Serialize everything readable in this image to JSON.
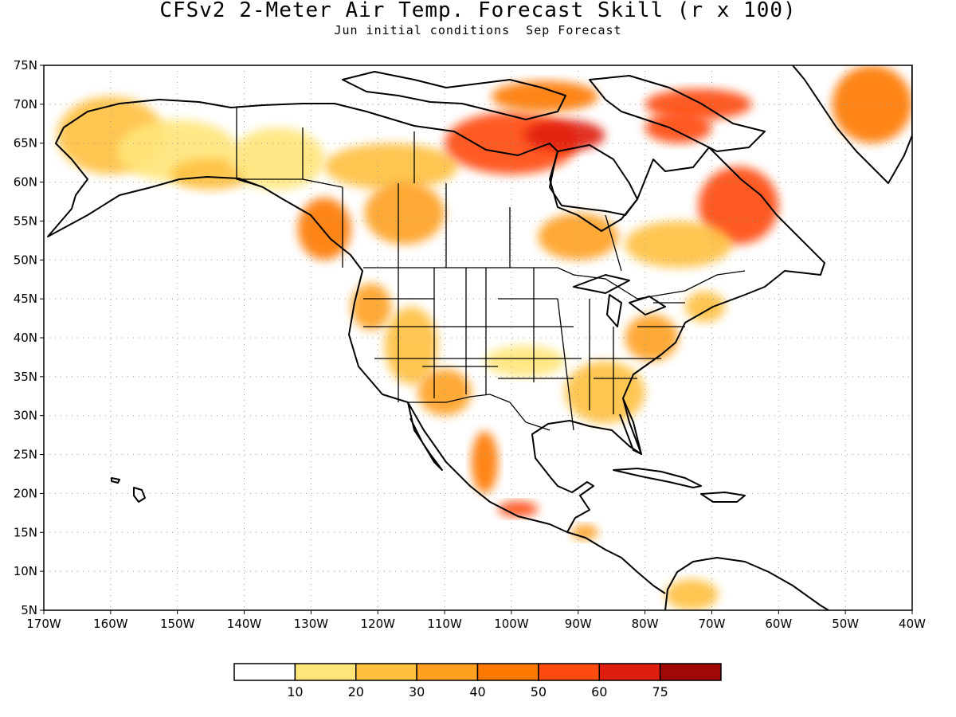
{
  "title": "CFSv2 2-Meter Air Temp. Forecast Skill (r x 100)",
  "subtitle": "Jun initial conditions  Sep Forecast",
  "map": {
    "lon_range": [
      -170,
      -40
    ],
    "lat_range": [
      5,
      75
    ],
    "x_ticks": [
      -170,
      -160,
      -150,
      -140,
      -130,
      -120,
      -110,
      -100,
      -90,
      -80,
      -70,
      -60,
      -50,
      -40
    ],
    "y_ticks": [
      5,
      10,
      15,
      20,
      25,
      30,
      35,
      40,
      45,
      50,
      55,
      60,
      65,
      70,
      75
    ],
    "x_tick_labels": [
      "170W",
      "160W",
      "150W",
      "140W",
      "130W",
      "120W",
      "110W",
      "100W",
      "90W",
      "80W",
      "70W",
      "60W",
      "50W",
      "40W"
    ],
    "y_tick_labels": [
      "5N",
      "10N",
      "15N",
      "20N",
      "25N",
      "30N",
      "35N",
      "40N",
      "45N",
      "50N",
      "55N",
      "60N",
      "65N",
      "70N",
      "75N"
    ],
    "grid": "dotted"
  },
  "colorbar": {
    "colors": [
      "#ffffff",
      "#ffe57a",
      "#ffc040",
      "#ffa020",
      "#ff7800",
      "#ff4a10",
      "#e01e10",
      "#a00808"
    ],
    "labels": [
      "10",
      "20",
      "30",
      "40",
      "50",
      "60",
      "75"
    ]
  },
  "skill_regions": [
    {
      "name": "alaska-west",
      "lon": -160,
      "lat": 66,
      "rx": 8,
      "ry": 5,
      "level": 2
    },
    {
      "name": "alaska-central",
      "lon": -150,
      "lat": 64,
      "rx": 9,
      "ry": 4,
      "level": 1
    },
    {
      "name": "alaska-south",
      "lon": -145,
      "lat": 61,
      "rx": 6,
      "ry": 2,
      "level": 2
    },
    {
      "name": "yukon",
      "lon": -135,
      "lat": 63,
      "rx": 7,
      "ry": 4,
      "level": 1
    },
    {
      "name": "nw-territories",
      "lon": -118,
      "lat": 62,
      "rx": 10,
      "ry": 3,
      "level": 2
    },
    {
      "name": "bc-coast",
      "lon": -128,
      "lat": 54,
      "rx": 4,
      "ry": 4,
      "level": 4
    },
    {
      "name": "alberta",
      "lon": -116,
      "lat": 56,
      "rx": 6,
      "ry": 4,
      "level": 3
    },
    {
      "name": "hudson-west",
      "lon": -100,
      "lat": 65,
      "rx": 10,
      "ry": 4,
      "level": 5
    },
    {
      "name": "nunavut-core",
      "lon": -92,
      "lat": 66,
      "rx": 6,
      "ry": 2,
      "level": 6
    },
    {
      "name": "arctic-islands",
      "lon": -95,
      "lat": 71,
      "rx": 8,
      "ry": 2,
      "level": 4
    },
    {
      "name": "ellesmere",
      "lon": -72,
      "lat": 70,
      "rx": 8,
      "ry": 2,
      "level": 5
    },
    {
      "name": "baffin",
      "lon": -75,
      "lat": 67,
      "rx": 5,
      "ry": 2,
      "level": 5
    },
    {
      "name": "labrador",
      "lon": -66,
      "lat": 57,
      "rx": 6,
      "ry": 5,
      "level": 5
    },
    {
      "name": "quebec-south",
      "lon": -75,
      "lat": 52,
      "rx": 8,
      "ry": 3,
      "level": 2
    },
    {
      "name": "ontario",
      "lon": -90,
      "lat": 53,
      "rx": 6,
      "ry": 3,
      "level": 3
    },
    {
      "name": "greenland",
      "lon": -46,
      "lat": 70,
      "rx": 6,
      "ry": 5,
      "level": 4
    },
    {
      "name": "pacific-nw",
      "lon": -121,
      "lat": 44,
      "rx": 3,
      "ry": 3,
      "level": 3
    },
    {
      "name": "great-basin",
      "lon": -115,
      "lat": 39,
      "rx": 4,
      "ry": 5,
      "level": 2
    },
    {
      "name": "southwest",
      "lon": -110,
      "lat": 33,
      "rx": 4,
      "ry": 3,
      "level": 3
    },
    {
      "name": "central-plains",
      "lon": -98,
      "lat": 37,
      "rx": 6,
      "ry": 2,
      "level": 1
    },
    {
      "name": "southeast",
      "lon": -86,
      "lat": 33,
      "rx": 6,
      "ry": 4,
      "level": 2
    },
    {
      "name": "mid-atlantic",
      "lon": -79,
      "lat": 40,
      "rx": 4,
      "ry": 3,
      "level": 3
    },
    {
      "name": "new-england",
      "lon": -71,
      "lat": 44,
      "rx": 3,
      "ry": 2,
      "level": 2
    },
    {
      "name": "mexico-west",
      "lon": -104,
      "lat": 24,
      "rx": 2,
      "ry": 4,
      "level": 4
    },
    {
      "name": "mexico-south",
      "lon": -99,
      "lat": 18,
      "rx": 3,
      "ry": 1,
      "level": 5
    },
    {
      "name": "central-america",
      "lon": -89,
      "lat": 15,
      "rx": 2,
      "ry": 1,
      "level": 3
    },
    {
      "name": "colombia",
      "lon": -73,
      "lat": 7,
      "rx": 4,
      "ry": 2,
      "level": 2
    }
  ]
}
